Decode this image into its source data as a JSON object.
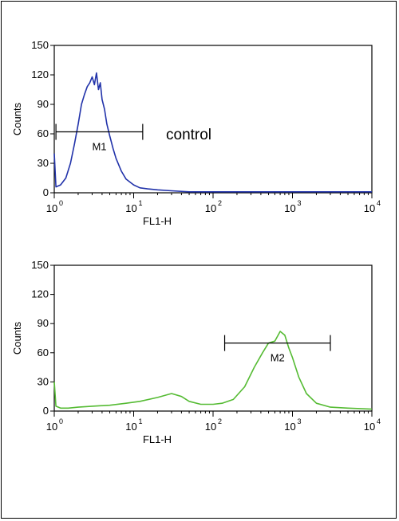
{
  "chart_data": [
    {
      "type": "line",
      "title": "",
      "xlabel": "FL1-H",
      "ylabel": "Counts",
      "xscale": "log",
      "xlim": [
        1,
        10000
      ],
      "ylim": [
        0,
        150
      ],
      "yticks": [
        "0",
        "30",
        "60",
        "90",
        "120",
        "150"
      ],
      "xticks": [
        {
          "base": "10",
          "exp": "0"
        },
        {
          "base": "10",
          "exp": "1"
        },
        {
          "base": "10",
          "exp": "2"
        },
        {
          "base": "10",
          "exp": "3"
        },
        {
          "base": "10",
          "exp": "4"
        }
      ],
      "annotation": "control",
      "color": "#2233aa",
      "marker": {
        "label": "M1",
        "x_start": 1.05,
        "x_end": 13,
        "y": 62
      },
      "x": [
        1,
        1.05,
        1.2,
        1.4,
        1.6,
        1.8,
        2.0,
        2.2,
        2.4,
        2.6,
        2.8,
        3.0,
        3.2,
        3.4,
        3.6,
        3.8,
        4.0,
        4.3,
        4.6,
        5.0,
        5.5,
        6.0,
        7.0,
        8.0,
        10,
        12,
        15,
        20,
        30,
        50,
        100,
        300,
        1000,
        3000,
        10000
      ],
      "y": [
        40,
        6,
        8,
        15,
        30,
        50,
        70,
        90,
        100,
        108,
        112,
        118,
        110,
        122,
        105,
        112,
        95,
        85,
        70,
        58,
        45,
        35,
        22,
        14,
        8,
        5,
        4,
        3,
        2,
        1,
        1,
        1,
        1,
        1,
        1
      ]
    },
    {
      "type": "line",
      "title": "",
      "xlabel": "FL1-H",
      "ylabel": "Counts",
      "xscale": "log",
      "xlim": [
        1,
        10000
      ],
      "ylim": [
        0,
        150
      ],
      "yticks": [
        "0",
        "30",
        "60",
        "90",
        "120",
        "150"
      ],
      "xticks": [
        {
          "base": "10",
          "exp": "0"
        },
        {
          "base": "10",
          "exp": "1"
        },
        {
          "base": "10",
          "exp": "2"
        },
        {
          "base": "10",
          "exp": "3"
        },
        {
          "base": "10",
          "exp": "4"
        }
      ],
      "annotation": "",
      "color": "#55bb33",
      "marker": {
        "label": "M2",
        "x_start": 140,
        "x_end": 3000,
        "y": 70
      },
      "x": [
        1,
        1.05,
        1.2,
        1.5,
        2,
        3,
        5,
        8,
        12,
        20,
        30,
        40,
        50,
        70,
        100,
        130,
        180,
        250,
        330,
        420,
        500,
        600,
        700,
        800,
        900,
        1000,
        1200,
        1500,
        2000,
        3000,
        5000,
        10000
      ],
      "y": [
        30,
        5,
        3,
        3,
        4,
        5,
        6,
        8,
        10,
        14,
        18,
        15,
        10,
        7,
        7,
        8,
        12,
        25,
        45,
        60,
        70,
        72,
        82,
        78,
        65,
        55,
        35,
        18,
        8,
        4,
        3,
        2
      ]
    }
  ]
}
